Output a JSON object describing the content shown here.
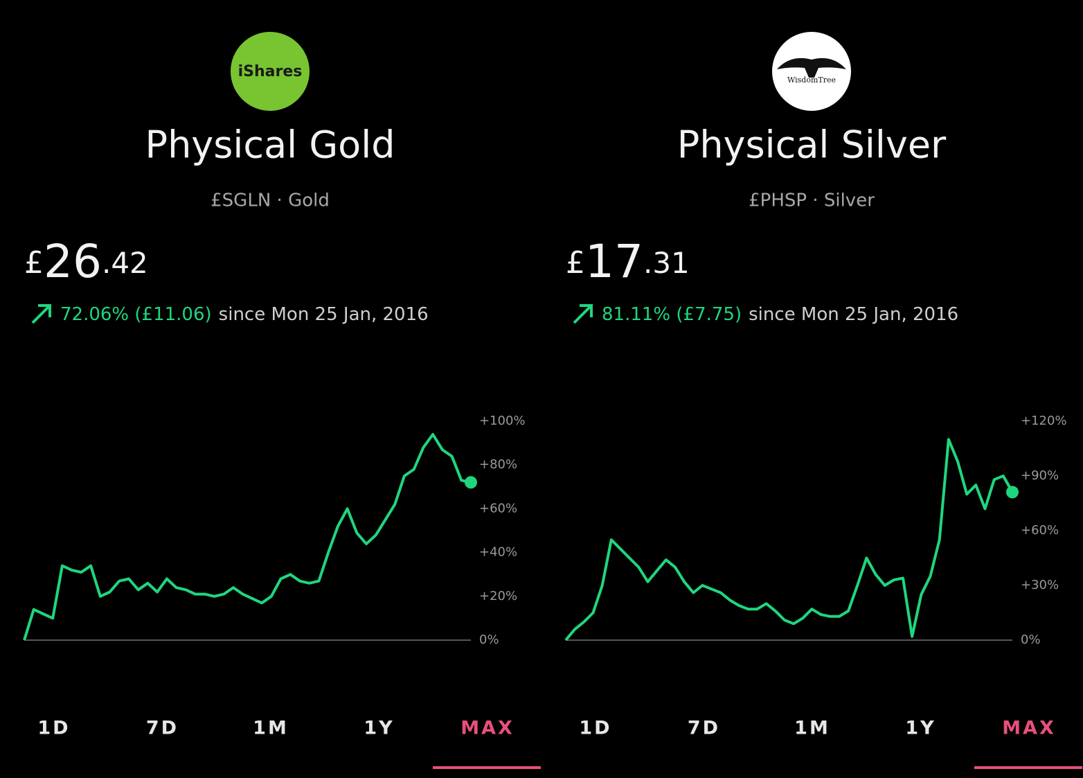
{
  "panels": [
    {
      "logo": "iShares",
      "title": "Physical Gold",
      "subtitle": "£SGLN · Gold",
      "price": {
        "currency": "£",
        "whole": "26",
        "fraction": ".42"
      },
      "change": {
        "value": "72.06% (£11.06)",
        "since": "since Mon 25 Jan, 2016"
      },
      "chart": {
        "type": "line",
        "color": "#1fd67f",
        "values": [
          0,
          14,
          12,
          10,
          34,
          32,
          31,
          34,
          20,
          22,
          27,
          28,
          23,
          26,
          22,
          28,
          24,
          23,
          21,
          21,
          20,
          21,
          24,
          21,
          19,
          17,
          20,
          28,
          30,
          27,
          26,
          27,
          40,
          52,
          60,
          49,
          44,
          48,
          55,
          62,
          75,
          78,
          88,
          94,
          87,
          84,
          73,
          72.06
        ],
        "ylim": [
          0,
          100
        ],
        "yticks": [
          {
            "value": 0,
            "label": "0%"
          },
          {
            "value": 20,
            "label": "+20%"
          },
          {
            "value": 40,
            "label": "+40%"
          },
          {
            "value": 60,
            "label": "+60%"
          },
          {
            "value": 80,
            "label": "+80%"
          },
          {
            "value": 100,
            "label": "+100%"
          }
        ]
      },
      "ranges": [
        "1D",
        "7D",
        "1M",
        "1Y",
        "MAX"
      ],
      "selected_range": 4
    },
    {
      "logo": "WisdomTree",
      "title": "Physical Silver",
      "subtitle": "£PHSP · Silver",
      "price": {
        "currency": "£",
        "whole": "17",
        "fraction": ".31"
      },
      "change": {
        "value": "81.11% (£7.75)",
        "since": "since Mon 25 Jan, 2016"
      },
      "chart": {
        "type": "line",
        "color": "#1fd67f",
        "values": [
          0,
          6,
          10,
          15,
          30,
          55,
          50,
          45,
          40,
          32,
          38,
          44,
          40,
          32,
          26,
          30,
          28,
          26,
          22,
          19,
          17,
          17,
          20,
          16,
          11,
          9,
          12,
          17,
          14,
          13,
          13,
          16,
          30,
          45,
          36,
          30,
          33,
          34,
          2,
          25,
          35,
          55,
          110,
          98,
          80,
          85,
          72,
          88,
          90,
          81.11
        ],
        "ylim": [
          0,
          120
        ],
        "yticks": [
          {
            "value": 0,
            "label": "0%"
          },
          {
            "value": 30,
            "label": "+30%"
          },
          {
            "value": 60,
            "label": "+60%"
          },
          {
            "value": 90,
            "label": "+90%"
          },
          {
            "value": 120,
            "label": "+120%"
          }
        ]
      },
      "ranges": [
        "1D",
        "7D",
        "1M",
        "1Y",
        "MAX"
      ],
      "selected_range": 4
    }
  ]
}
